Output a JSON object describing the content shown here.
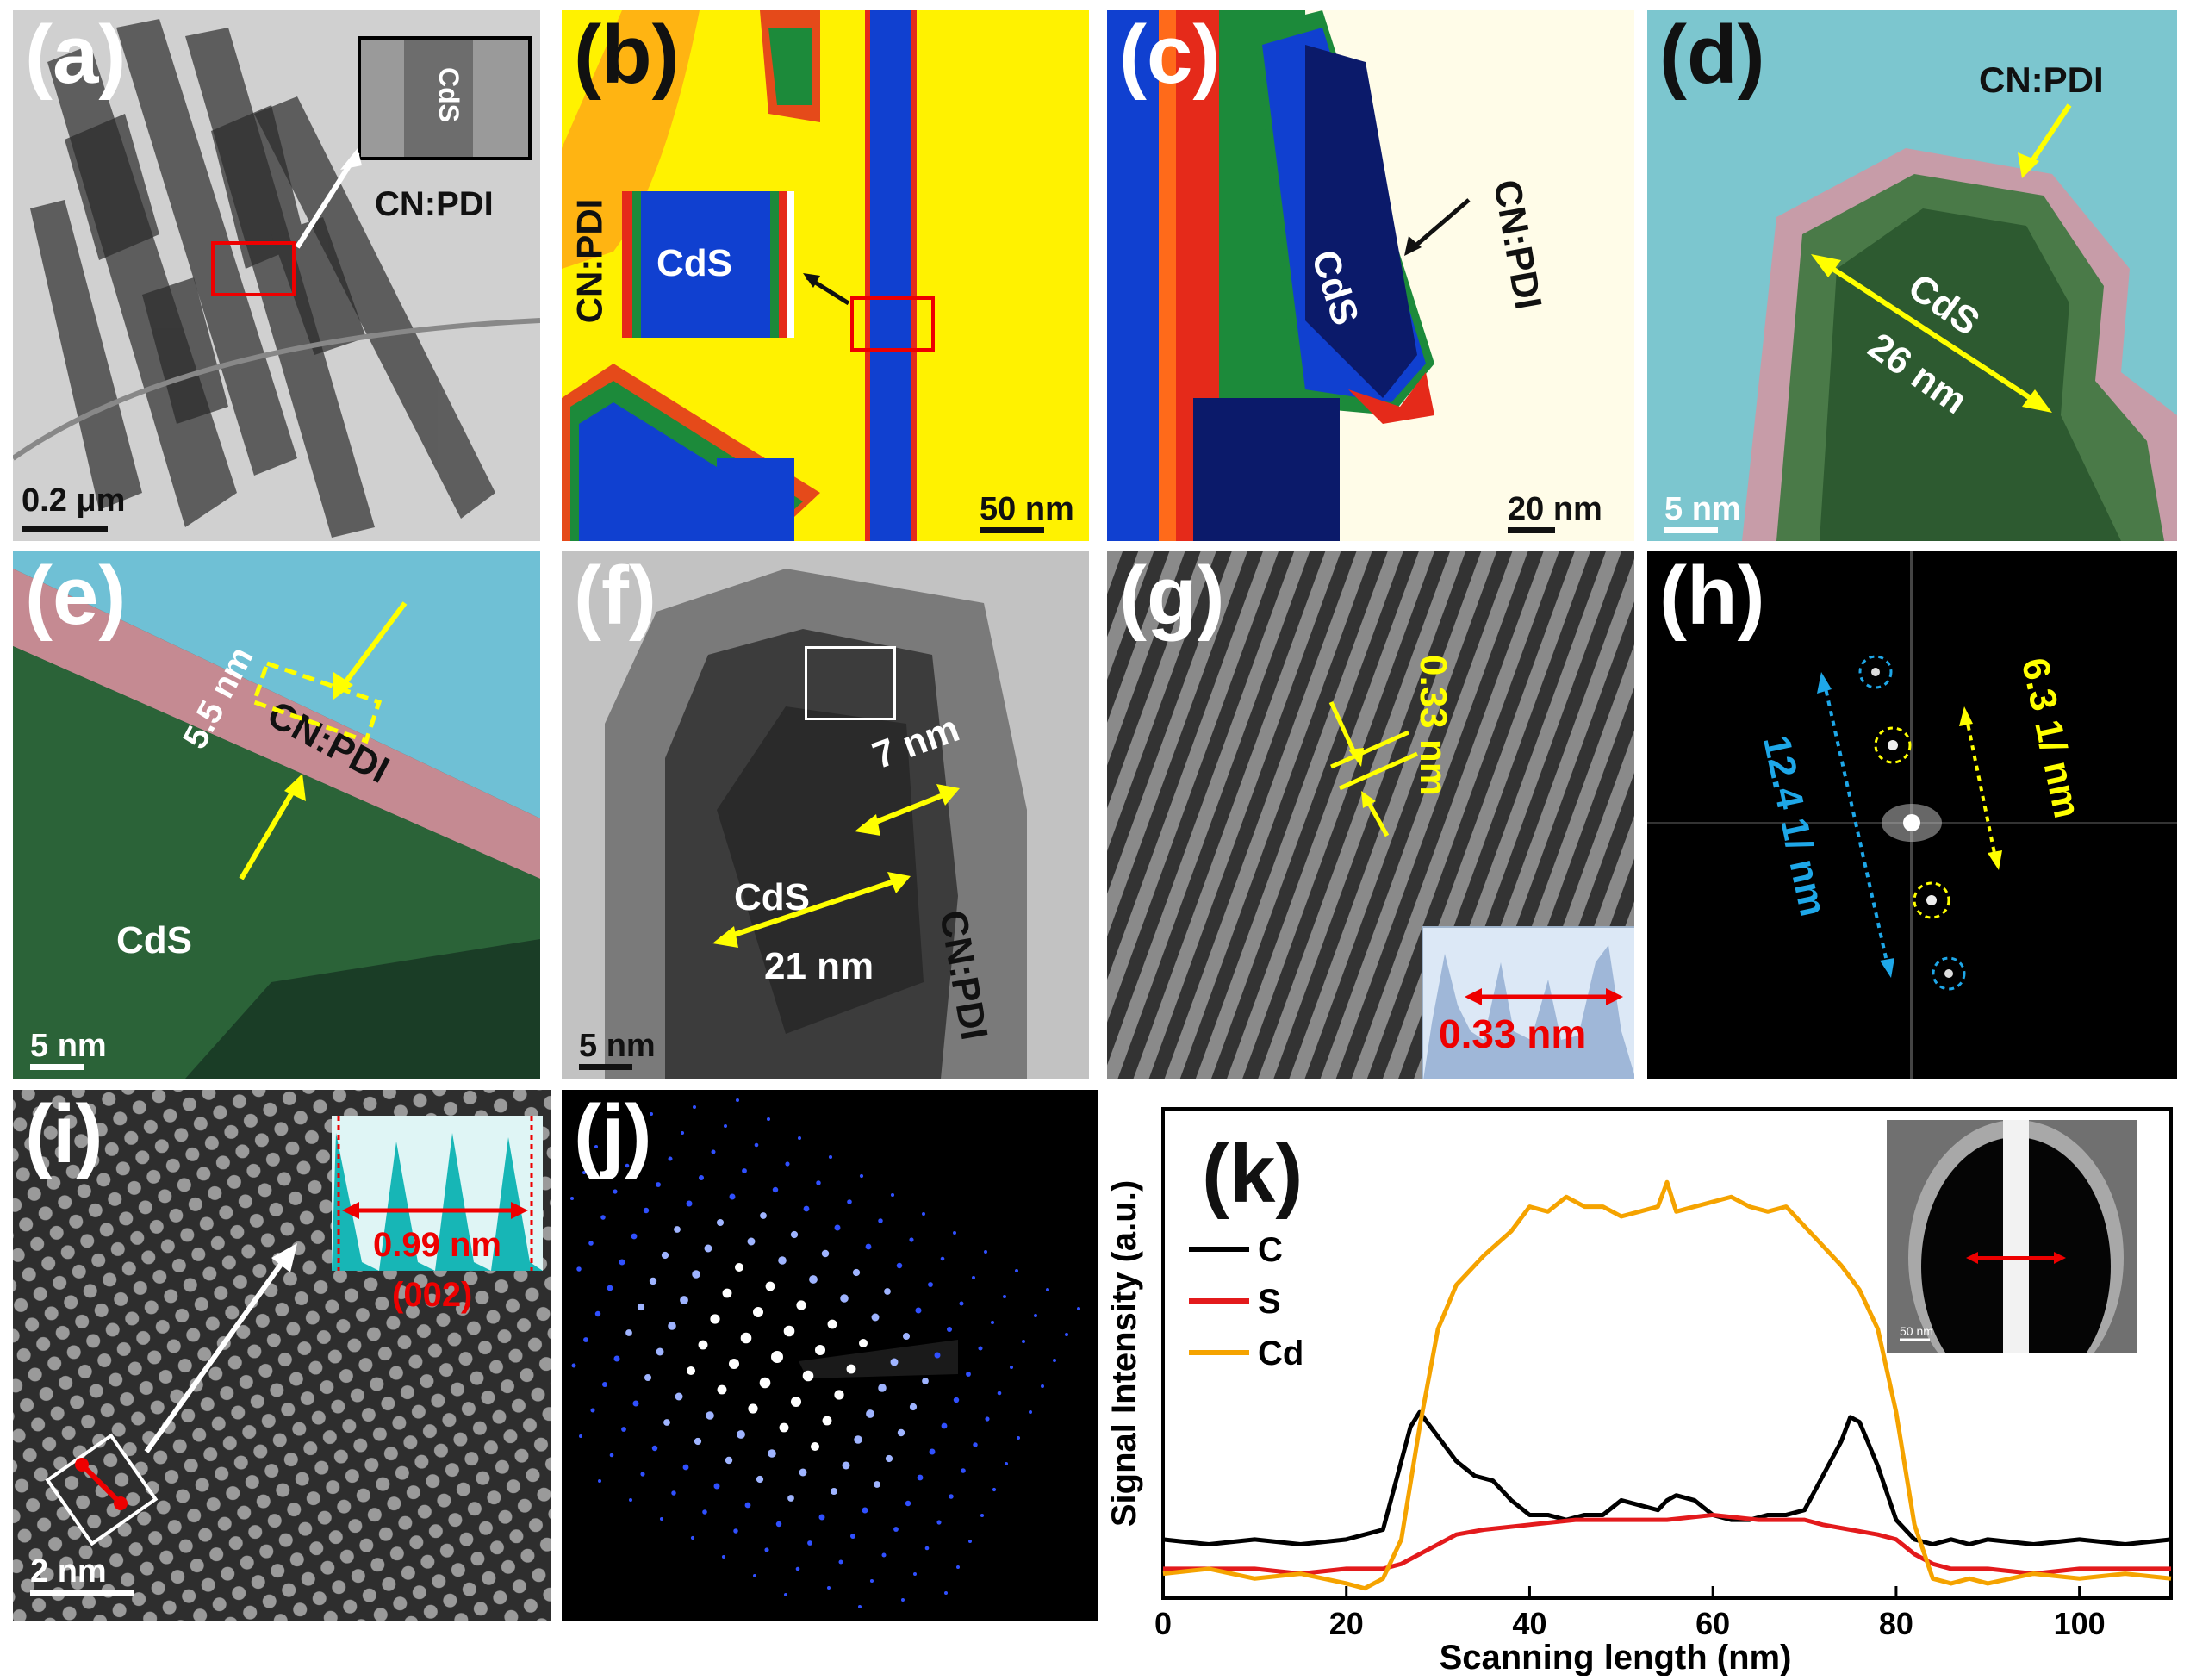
{
  "panels": {
    "a": {
      "label": "(a)",
      "inset_label": "CdS",
      "shell_label": "CN:PDI",
      "scale": "0.2 μm"
    },
    "b": {
      "label": "(b)",
      "inset_core": "CdS",
      "inset_shell": "CN:PDI",
      "scale": "50 nm"
    },
    "c": {
      "label": "(c)",
      "core": "CdS",
      "shell": "CN:PDI",
      "scale": "20 nm"
    },
    "d": {
      "label": "(d)",
      "shell": "CN:PDI",
      "core": "CdS",
      "width": "26 nm",
      "scale": "5 nm"
    },
    "e": {
      "label": "(e)",
      "thickness": "5.5 nm",
      "shell": "CN:PDI",
      "core": "CdS",
      "scale": "5 nm"
    },
    "f": {
      "label": "(f)",
      "shell_width": "7 nm",
      "core": "CdS",
      "core_width": "21 nm",
      "shell": "CN:PDI",
      "scale": "5 nm"
    },
    "g": {
      "label": "(g)",
      "spacing": "0.33 nm",
      "profile_spacing": "0.33 nm"
    },
    "h": {
      "label": "(h)",
      "blue": "12.4  1/ nm",
      "yellow": "6.3  1/ nm"
    },
    "i": {
      "label": "(i)",
      "profile_spacing": "0.99 nm",
      "plane": "(002)",
      "scale": "2 nm"
    },
    "j": {
      "label": "(j)"
    },
    "k": {
      "label": "(k)",
      "inset_scale": "50 nm"
    }
  },
  "colors": {
    "C": "#000000",
    "S": "#e31a1c",
    "Cd": "#f5a300",
    "blue_annot": "#1ea7e8",
    "yellow_annot": "#ffff00"
  },
  "chart_data": {
    "type": "line",
    "xlabel": "Scanning length (nm)",
    "ylabel": "Signal Intensity (a.u.)",
    "xlim": [
      0,
      110
    ],
    "ylim": [
      0,
      1
    ],
    "xticks": [
      0,
      20,
      40,
      60,
      80,
      100
    ],
    "legend_position": "left",
    "series": [
      {
        "name": "C",
        "x": [
          0,
          5,
          10,
          15,
          20,
          24,
          26,
          27,
          28,
          30,
          32,
          34,
          36,
          38,
          40,
          42,
          44,
          46,
          48,
          50,
          52,
          54,
          55,
          56,
          58,
          60,
          62,
          64,
          66,
          68,
          70,
          72,
          74,
          75,
          76,
          78,
          80,
          82,
          84,
          86,
          88,
          90,
          95,
          100,
          105,
          110
        ],
        "y": [
          0.12,
          0.11,
          0.12,
          0.11,
          0.12,
          0.14,
          0.28,
          0.35,
          0.38,
          0.33,
          0.28,
          0.25,
          0.24,
          0.2,
          0.17,
          0.17,
          0.16,
          0.17,
          0.17,
          0.2,
          0.19,
          0.18,
          0.2,
          0.21,
          0.2,
          0.17,
          0.16,
          0.16,
          0.17,
          0.17,
          0.18,
          0.25,
          0.32,
          0.37,
          0.36,
          0.27,
          0.16,
          0.12,
          0.11,
          0.12,
          0.11,
          0.12,
          0.11,
          0.12,
          0.11,
          0.12
        ]
      },
      {
        "name": "S",
        "x": [
          0,
          5,
          10,
          15,
          20,
          24,
          26,
          28,
          30,
          32,
          35,
          40,
          45,
          50,
          55,
          60,
          65,
          70,
          72,
          75,
          78,
          80,
          82,
          84,
          86,
          90,
          95,
          100,
          105,
          110
        ],
        "y": [
          0.06,
          0.06,
          0.06,
          0.05,
          0.06,
          0.06,
          0.07,
          0.09,
          0.11,
          0.13,
          0.14,
          0.15,
          0.16,
          0.16,
          0.16,
          0.17,
          0.16,
          0.16,
          0.15,
          0.14,
          0.13,
          0.12,
          0.09,
          0.07,
          0.06,
          0.06,
          0.05,
          0.06,
          0.06,
          0.06
        ]
      },
      {
        "name": "Cd",
        "x": [
          0,
          5,
          10,
          15,
          20,
          22,
          24,
          26,
          28,
          30,
          32,
          35,
          38,
          40,
          42,
          44,
          46,
          48,
          50,
          52,
          54,
          55,
          56,
          58,
          60,
          62,
          64,
          66,
          68,
          70,
          72,
          74,
          76,
          78,
          80,
          82,
          84,
          86,
          88,
          90,
          95,
          100,
          105,
          110
        ],
        "y": [
          0.05,
          0.06,
          0.04,
          0.05,
          0.03,
          0.02,
          0.04,
          0.12,
          0.35,
          0.55,
          0.64,
          0.7,
          0.75,
          0.8,
          0.79,
          0.82,
          0.8,
          0.8,
          0.78,
          0.79,
          0.8,
          0.85,
          0.79,
          0.8,
          0.81,
          0.82,
          0.8,
          0.79,
          0.8,
          0.76,
          0.72,
          0.68,
          0.63,
          0.55,
          0.38,
          0.15,
          0.04,
          0.03,
          0.04,
          0.03,
          0.05,
          0.04,
          0.05,
          0.04
        ]
      }
    ]
  }
}
